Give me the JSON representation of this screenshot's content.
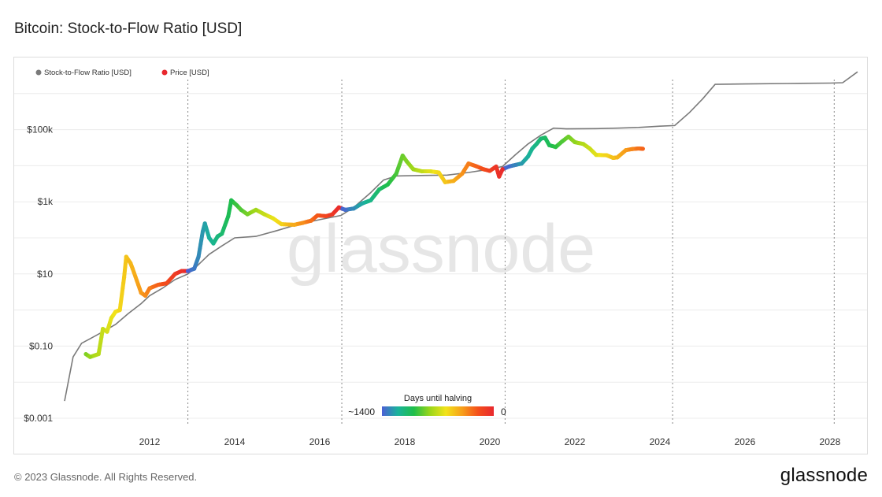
{
  "title": "Bitcoin: Stock-to-Flow Ratio [USD]",
  "footer": "© 2023 Glassnode. All Rights Reserved.",
  "brand": "glassnode",
  "watermark": "glassnode",
  "colors": {
    "s2f_line": "#7a7a7a",
    "price_legend_dot": "#e8282e",
    "grid": "#ececec",
    "halving_line": "#888888",
    "gradient": [
      "#4c5fd5",
      "#1ab39b",
      "#1fbe4a",
      "#9ad61a",
      "#f2e31a",
      "#f7a01a",
      "#f4501a",
      "#e8282e"
    ]
  },
  "chart_data": {
    "type": "line",
    "title": "Bitcoin: Stock-to-Flow Ratio [USD]",
    "y_scale": "log",
    "ylim": [
      0.001,
      10000000
    ],
    "y_ticks": [
      {
        "value": 0.001,
        "label": "$0.001"
      },
      {
        "value": 0.1,
        "label": "$0.10"
      },
      {
        "value": 10,
        "label": "$10"
      },
      {
        "value": 1000,
        "label": "$1k"
      },
      {
        "value": 100000,
        "label": "$100k"
      }
    ],
    "y_grid_values": [
      0.001,
      0.01,
      0.1,
      1,
      10,
      100,
      1000,
      10000,
      100000,
      1000000
    ],
    "xlim": [
      2010.0,
      2028.65
    ],
    "x_ticks": [
      2012,
      2014,
      2016,
      2018,
      2020,
      2022,
      2024,
      2026,
      2028
    ],
    "halvings": [
      2012.9,
      2016.52,
      2020.36,
      2024.3,
      2028.1
    ],
    "legend": [
      {
        "name": "Stock-to-Flow Ratio [USD]",
        "color": "#7a7a7a"
      },
      {
        "name": "Price [USD]",
        "color": "#e8282e"
      }
    ],
    "colorbar": {
      "title": "Days until halving",
      "left_label": "~1400",
      "right_label": "0"
    },
    "series": [
      {
        "name": "Stock-to-Flow Ratio [USD]",
        "points": [
          [
            2010.0,
            0.003
          ],
          [
            2010.2,
            0.05
          ],
          [
            2010.4,
            0.12
          ],
          [
            2010.6,
            0.16
          ],
          [
            2010.9,
            0.25
          ],
          [
            2011.2,
            0.4
          ],
          [
            2011.5,
            0.8
          ],
          [
            2011.8,
            1.5
          ],
          [
            2012.0,
            2.5
          ],
          [
            2012.3,
            4
          ],
          [
            2012.6,
            7
          ],
          [
            2012.9,
            10
          ],
          [
            2013.1,
            16
          ],
          [
            2013.4,
            35
          ],
          [
            2013.7,
            60
          ],
          [
            2014.0,
            100
          ],
          [
            2014.5,
            110
          ],
          [
            2015.0,
            160
          ],
          [
            2015.5,
            240
          ],
          [
            2016.0,
            320
          ],
          [
            2016.5,
            420
          ],
          [
            2016.8,
            700
          ],
          [
            2017.2,
            1800
          ],
          [
            2017.5,
            4000
          ],
          [
            2017.8,
            5200
          ],
          [
            2018.5,
            5400
          ],
          [
            2019.0,
            5500
          ],
          [
            2019.5,
            6500
          ],
          [
            2020.0,
            8000
          ],
          [
            2020.3,
            9500
          ],
          [
            2020.6,
            20000
          ],
          [
            2020.9,
            40000
          ],
          [
            2021.2,
            70000
          ],
          [
            2021.5,
            110000
          ],
          [
            2021.8,
            105000
          ],
          [
            2022.5,
            107000
          ],
          [
            2023.0,
            110000
          ],
          [
            2023.5,
            115000
          ],
          [
            2024.0,
            125000
          ],
          [
            2024.35,
            130000
          ],
          [
            2024.7,
            300000
          ],
          [
            2025.0,
            700000
          ],
          [
            2025.3,
            1800000
          ],
          [
            2026.0,
            1850000
          ],
          [
            2027.0,
            1900000
          ],
          [
            2028.0,
            1950000
          ],
          [
            2028.3,
            2000000
          ],
          [
            2028.65,
            4000000
          ]
        ]
      },
      {
        "name": "Price [USD]",
        "points": [
          [
            2010.5,
            0.06
          ],
          [
            2010.6,
            0.05
          ],
          [
            2010.8,
            0.06
          ],
          [
            2010.9,
            0.3
          ],
          [
            2011.0,
            0.25
          ],
          [
            2011.1,
            0.6
          ],
          [
            2011.2,
            0.9
          ],
          [
            2011.3,
            1.0
          ],
          [
            2011.4,
            8
          ],
          [
            2011.45,
            30
          ],
          [
            2011.55,
            20
          ],
          [
            2011.6,
            14
          ],
          [
            2011.8,
            3
          ],
          [
            2011.9,
            2.5
          ],
          [
            2012.0,
            4
          ],
          [
            2012.2,
            5
          ],
          [
            2012.4,
            5.5
          ],
          [
            2012.6,
            10
          ],
          [
            2012.75,
            12
          ],
          [
            2012.9,
            12
          ],
          [
            2013.05,
            14
          ],
          [
            2013.15,
            30
          ],
          [
            2013.25,
            150
          ],
          [
            2013.3,
            250
          ],
          [
            2013.4,
            100
          ],
          [
            2013.5,
            70
          ],
          [
            2013.6,
            110
          ],
          [
            2013.7,
            130
          ],
          [
            2013.85,
            400
          ],
          [
            2013.92,
            1100
          ],
          [
            2014.05,
            800
          ],
          [
            2014.15,
            600
          ],
          [
            2014.3,
            450
          ],
          [
            2014.5,
            600
          ],
          [
            2014.7,
            450
          ],
          [
            2014.9,
            350
          ],
          [
            2015.1,
            240
          ],
          [
            2015.4,
            230
          ],
          [
            2015.6,
            260
          ],
          [
            2015.8,
            300
          ],
          [
            2015.95,
            420
          ],
          [
            2016.15,
            400
          ],
          [
            2016.3,
            450
          ],
          [
            2016.45,
            700
          ],
          [
            2016.6,
            600
          ],
          [
            2016.8,
            650
          ],
          [
            2017.0,
            900
          ],
          [
            2017.2,
            1100
          ],
          [
            2017.4,
            2200
          ],
          [
            2017.6,
            3000
          ],
          [
            2017.8,
            6000
          ],
          [
            2017.95,
            19000
          ],
          [
            2018.05,
            13000
          ],
          [
            2018.2,
            8000
          ],
          [
            2018.4,
            7000
          ],
          [
            2018.6,
            7000
          ],
          [
            2018.8,
            6500
          ],
          [
            2018.95,
            3500
          ],
          [
            2019.15,
            3800
          ],
          [
            2019.35,
            6000
          ],
          [
            2019.5,
            11500
          ],
          [
            2019.7,
            9500
          ],
          [
            2019.85,
            8000
          ],
          [
            2020.0,
            7200
          ],
          [
            2020.15,
            9500
          ],
          [
            2020.22,
            5000
          ],
          [
            2020.3,
            8000
          ],
          [
            2020.45,
            9500
          ],
          [
            2020.6,
            10500
          ],
          [
            2020.75,
            11500
          ],
          [
            2020.9,
            18000
          ],
          [
            2021.0,
            30000
          ],
          [
            2021.1,
            40000
          ],
          [
            2021.2,
            56000
          ],
          [
            2021.3,
            60000
          ],
          [
            2021.4,
            37000
          ],
          [
            2021.55,
            33000
          ],
          [
            2021.7,
            47000
          ],
          [
            2021.85,
            64000
          ],
          [
            2022.0,
            45000
          ],
          [
            2022.2,
            40000
          ],
          [
            2022.35,
            30000
          ],
          [
            2022.5,
            20000
          ],
          [
            2022.75,
            19500
          ],
          [
            2022.9,
            16500
          ],
          [
            2023.0,
            17000
          ],
          [
            2023.2,
            27000
          ],
          [
            2023.35,
            29000
          ],
          [
            2023.5,
            30000
          ],
          [
            2023.6,
            29500
          ]
        ]
      }
    ]
  }
}
